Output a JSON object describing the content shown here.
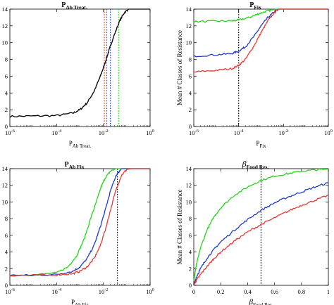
{
  "chart_data": [
    {
      "type": "line",
      "title": "P",
      "title_sub": "Ab Treat.",
      "xlabel": "P",
      "xlabel_sub": "Ab Treat.",
      "ylabel": "Mean # Classes of Resistance",
      "xscale": "log",
      "xlim": [
        1e-06,
        1
      ],
      "ylim": [
        0,
        14
      ],
      "xticks": [
        1e-06,
        0.0001,
        0.01,
        1
      ],
      "xtick_labels": [
        [
          "10",
          "-6"
        ],
        [
          "10",
          "-4"
        ],
        [
          "10",
          "-2"
        ],
        [
          "10",
          "0"
        ]
      ],
      "yticks": [
        0,
        2,
        4,
        6,
        8,
        10,
        12,
        14
      ],
      "ytick_labels": [
        "0",
        "2",
        "4",
        "6",
        "8",
        "10",
        "12",
        "14"
      ],
      "vlines": [
        {
          "x": 0.011,
          "color": "#e53935"
        },
        {
          "x": 0.014,
          "color": "#7b3fa0"
        },
        {
          "x": 0.02,
          "color": "#1e3cc8"
        },
        {
          "x": 0.045,
          "color": "#2bd11f"
        }
      ],
      "series": [
        {
          "color": "#000000",
          "x": [
            1e-06,
            1e-05,
            0.0001,
            0.0005,
            0.001,
            0.002,
            0.004,
            0.007,
            0.01,
            0.015,
            0.02,
            0.03,
            0.05,
            0.08,
            0.12,
            0.2,
            1
          ],
          "y": [
            1.2,
            1.25,
            1.3,
            1.6,
            2.0,
            2.8,
            4.2,
            5.8,
            7.0,
            8.5,
            9.6,
            11.0,
            12.6,
            13.6,
            14.0,
            14.0,
            14.0
          ]
        }
      ]
    },
    {
      "type": "line",
      "title": "P",
      "title_sub": "Fix",
      "xlabel": "P",
      "xlabel_sub": "Fix",
      "ylabel": "Mean # Classes of Resistance",
      "xscale": "log",
      "xlim": [
        1e-06,
        1
      ],
      "ylim": [
        0,
        14
      ],
      "xticks": [
        1e-06,
        0.0001,
        0.01,
        1
      ],
      "xtick_labels": [
        [
          "10",
          "-6"
        ],
        [
          "10",
          "-4"
        ],
        [
          "10",
          "-2"
        ],
        [
          "10",
          "0"
        ]
      ],
      "yticks": [
        0,
        2,
        4,
        6,
        8,
        10,
        12,
        14
      ],
      "ytick_labels": [
        "0",
        "2",
        "4",
        "6",
        "8",
        "10",
        "12",
        "14"
      ],
      "vlines": [
        {
          "x": 0.0001,
          "color": "#000000"
        }
      ],
      "series": [
        {
          "color": "#2bd11f",
          "x": [
            1e-06,
            1e-05,
            5e-05,
            0.0001,
            0.0003,
            0.0007,
            0.0015,
            0.003,
            0.005,
            0.01,
            1
          ],
          "y": [
            12.5,
            12.55,
            12.6,
            12.7,
            13.0,
            13.4,
            13.7,
            13.9,
            14.0,
            14.0,
            14.0
          ]
        },
        {
          "color": "#1e3cc8",
          "x": [
            1e-06,
            1e-05,
            5e-05,
            0.0001,
            0.0002,
            0.0005,
            0.001,
            0.002,
            0.004,
            0.006,
            0.01,
            1
          ],
          "y": [
            8.4,
            8.55,
            8.7,
            9.0,
            9.5,
            10.8,
            12.0,
            13.0,
            13.7,
            14.0,
            14.0,
            14.0
          ]
        },
        {
          "color": "#e53935",
          "x": [
            1e-06,
            1e-05,
            5e-05,
            0.0001,
            0.0002,
            0.0005,
            0.001,
            0.002,
            0.004,
            0.006,
            0.01,
            1
          ],
          "y": [
            6.5,
            6.7,
            6.9,
            7.3,
            8.0,
            9.7,
            11.2,
            12.6,
            13.6,
            14.0,
            14.0,
            14.0
          ]
        }
      ]
    },
    {
      "type": "line",
      "title": "P",
      "title_sub": "Ab Fix",
      "xlabel": "P",
      "xlabel_sub": "Ab Fix",
      "ylabel": "Mean # Classes of Resistance",
      "xscale": "log",
      "xlim": [
        1e-06,
        1
      ],
      "ylim": [
        0,
        14
      ],
      "xticks": [
        1e-06,
        0.0001,
        0.01,
        1
      ],
      "xtick_labels": [
        [
          "10",
          "-6"
        ],
        [
          "10",
          "-4"
        ],
        [
          "10",
          "-2"
        ],
        [
          "10",
          "0"
        ]
      ],
      "yticks": [
        0,
        2,
        4,
        6,
        8,
        10,
        12,
        14
      ],
      "ytick_labels": [
        "0",
        "2",
        "4",
        "6",
        "8",
        "10",
        "12",
        "14"
      ],
      "vlines": [
        {
          "x": 0.04,
          "color": "#000000"
        }
      ],
      "series": [
        {
          "color": "#2bd11f",
          "x": [
            1e-06,
            1e-05,
            0.0001,
            0.0003,
            0.0007,
            0.0015,
            0.003,
            0.005,
            0.008,
            0.012,
            0.02,
            0.035,
            0.05,
            1
          ],
          "y": [
            1.2,
            1.25,
            1.5,
            2.2,
            3.5,
            5.5,
            8.2,
            10.0,
            11.8,
            12.9,
            13.7,
            14.0,
            14.0,
            14.0
          ]
        },
        {
          "color": "#1e3cc8",
          "x": [
            1e-06,
            1e-05,
            0.0001,
            0.0005,
            0.001,
            0.002,
            0.004,
            0.007,
            0.012,
            0.02,
            0.035,
            0.06,
            0.1,
            1
          ],
          "y": [
            1.2,
            1.2,
            1.3,
            1.7,
            2.2,
            3.2,
            4.8,
            6.8,
            9.0,
            11.3,
            13.2,
            14.0,
            14.0,
            14.0
          ]
        },
        {
          "color": "#e53935",
          "x": [
            1e-06,
            1e-05,
            0.0001,
            0.0005,
            0.001,
            0.002,
            0.004,
            0.007,
            0.012,
            0.02,
            0.035,
            0.06,
            0.1,
            0.15,
            1
          ],
          "y": [
            1.2,
            1.2,
            1.25,
            1.4,
            1.7,
            2.2,
            3.2,
            4.6,
            6.6,
            9.0,
            11.5,
            13.2,
            13.9,
            14.0,
            14.0
          ]
        }
      ]
    },
    {
      "type": "line",
      "title": "β",
      "title_sub": "Food Res.",
      "xlabel": "β",
      "xlabel_sub": "Food Res.",
      "ylabel": "Mean # Classes of Resistance",
      "xscale": "linear",
      "xlim": [
        0,
        1
      ],
      "ylim": [
        0,
        14
      ],
      "xticks": [
        0,
        0.2,
        0.4,
        0.6,
        0.8,
        1
      ],
      "xtick_labels": [
        [
          "0",
          ""
        ],
        [
          "0.2",
          ""
        ],
        [
          "0.4",
          ""
        ],
        [
          "0.6",
          ""
        ],
        [
          "0.8",
          ""
        ],
        [
          "1",
          ""
        ]
      ],
      "yticks": [
        0,
        2,
        4,
        6,
        8,
        10,
        12,
        14
      ],
      "ytick_labels": [
        "0",
        "2",
        "4",
        "6",
        "8",
        "10",
        "12",
        "14"
      ],
      "vlines": [
        {
          "x": 0.5,
          "color": "#000000"
        }
      ],
      "series": [
        {
          "color": "#2bd11f",
          "x": [
            0,
            0.02,
            0.05,
            0.1,
            0.15,
            0.2,
            0.3,
            0.4,
            0.5,
            0.6,
            0.7,
            0.8,
            0.9,
            1.0
          ],
          "y": [
            0.5,
            2.5,
            4.5,
            6.7,
            8.2,
            9.3,
            10.8,
            11.8,
            12.6,
            13.1,
            13.4,
            13.7,
            13.85,
            13.95
          ]
        },
        {
          "color": "#1e3cc8",
          "x": [
            0,
            0.02,
            0.05,
            0.1,
            0.15,
            0.2,
            0.3,
            0.4,
            0.5,
            0.6,
            0.7,
            0.8,
            0.9,
            1.0
          ],
          "y": [
            0.1,
            1.0,
            2.0,
            3.3,
            4.3,
            5.2,
            6.6,
            7.9,
            9.0,
            9.9,
            10.6,
            11.2,
            11.8,
            12.3
          ]
        },
        {
          "color": "#e53935",
          "x": [
            0,
            0.02,
            0.05,
            0.1,
            0.15,
            0.2,
            0.3,
            0.4,
            0.5,
            0.6,
            0.7,
            0.8,
            0.9,
            1.0
          ],
          "y": [
            0.0,
            0.6,
            1.3,
            2.3,
            3.2,
            4.0,
            5.3,
            6.4,
            7.3,
            8.1,
            8.9,
            9.6,
            10.2,
            10.8
          ]
        }
      ]
    }
  ]
}
